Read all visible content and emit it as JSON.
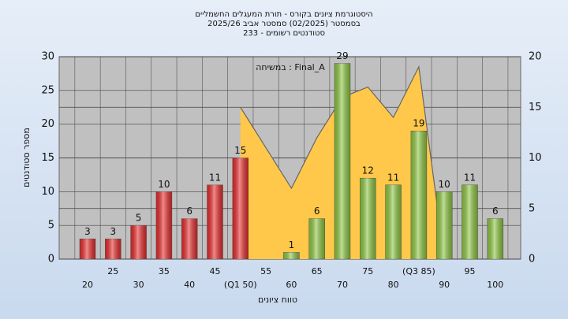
{
  "chart_data": {
    "type": "bar",
    "title": "היסטוגרמת ציונים בקורס - תורת המעגלים החשמליים",
    "subtitle": "בסמסטר (02/2025) סמסטר אביב 2025/26",
    "subtitle2": "סטודנטים רשומים - 233",
    "annotation": "במשיחה : Final_A",
    "xlabel": "טווח ציונים",
    "ylabel": "מספר סטודנטים",
    "categories": [
      "20",
      "25",
      "30",
      "35",
      "40",
      "45",
      "(Q1 50)",
      "55",
      "60",
      "65",
      "70",
      "75",
      "80",
      "(Q3 85)",
      "90",
      "95",
      "100"
    ],
    "series": [
      {
        "values": [
          3,
          3,
          5,
          10,
          6,
          11,
          15,
          0,
          1,
          6,
          29,
          12,
          11,
          19,
          10,
          11,
          6
        ],
        "colors": [
          "#e82a2a",
          "#e82a2a",
          "#e82a2a",
          "#e82a2a",
          "#e82a2a",
          "#e82a2a",
          "#e82a2a",
          "#8cc63f",
          "#8cc63f",
          "#8cc63f",
          "#8cc63f",
          "#8cc63f",
          "#8cc63f",
          "#8cc63f",
          "#8cc63f",
          "#8cc63f",
          "#8cc63f"
        ]
      },
      {
        "type": "area",
        "axis": "y2",
        "color": "#ffc84a",
        "values": [
          null,
          null,
          null,
          null,
          null,
          null,
          15,
          11,
          7,
          12,
          16,
          17,
          14,
          19,
          0,
          null,
          null
        ]
      }
    ],
    "ylim": [
      0,
      30
    ],
    "yticks": [
      0,
      5,
      10,
      15,
      20,
      25,
      30
    ],
    "y2lim": [
      0,
      20
    ],
    "y2ticks": [
      0,
      5,
      10,
      15,
      20
    ],
    "grid": true
  }
}
